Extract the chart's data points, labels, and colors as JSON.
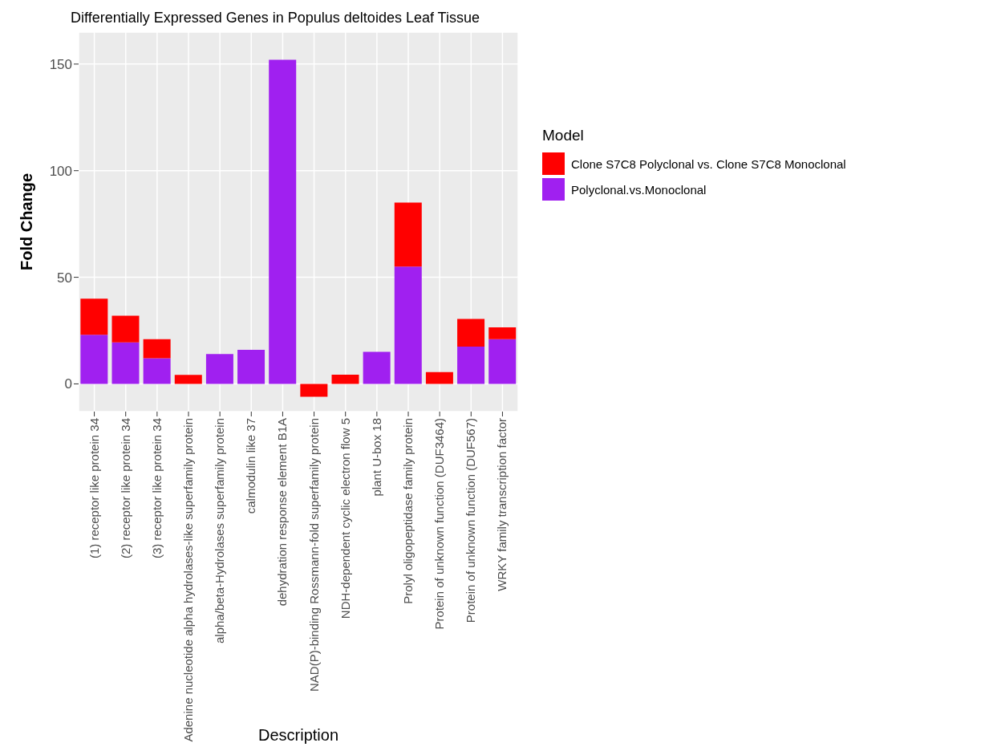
{
  "chart_data": {
    "type": "bar",
    "title": "Differentially Expressed Genes in Populus deltoides Leaf Tissue",
    "xlabel": "Description",
    "ylabel": "Fold Change",
    "legend_title": "Model",
    "categories": [
      "(1) receptor like protein 34",
      "(2) receptor like protein 34",
      "(3) receptor like protein 34",
      "Adenine nucleotide alpha hydrolases-like superfamily protein",
      "alpha/beta-Hydrolases superfamily protein",
      "calmodulin like 37",
      "dehydration response element B1A",
      "NAD(P)-binding Rossmann-fold superfamily protein",
      "NDH-dependent cyclic electron flow 5",
      "plant U-box 18",
      "Prolyl oligopeptidase family protein",
      "Protein of unknown function (DUF3464)",
      "Protein of unknown function (DUF567)",
      "WRKY family transcription factor"
    ],
    "stacked": true,
    "series": [
      {
        "name": "Polyclonal.vs.Monoclonal",
        "color": "#a020f0",
        "values": [
          23,
          19.5,
          12,
          null,
          14,
          16,
          152,
          null,
          null,
          15,
          55,
          null,
          17.5,
          21
        ]
      },
      {
        "name": "Clone S7C8 Polyclonal vs. Clone S7C8 Monoclonal",
        "color": "#ff0000",
        "values": [
          17,
          12.5,
          9,
          4.2,
          null,
          null,
          null,
          -6,
          4.3,
          null,
          30,
          5.5,
          13,
          5.5
        ]
      }
    ],
    "ylim": [
      -13,
      165
    ],
    "yticks": [
      0,
      50,
      100,
      150
    ],
    "grid": true,
    "legend": "right"
  }
}
